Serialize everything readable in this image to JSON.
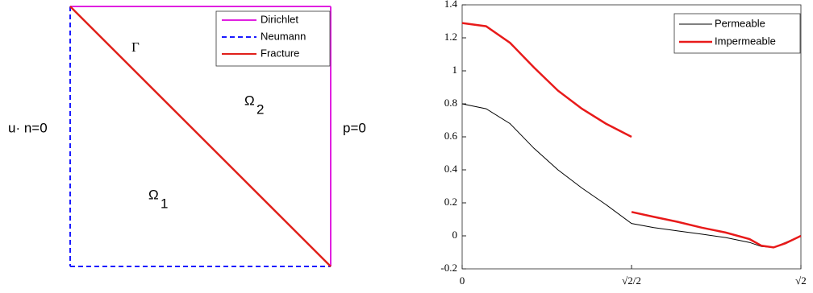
{
  "diagram": {
    "legend": [
      {
        "label": "Dirichlet",
        "color": "#e020e0",
        "dashed": false
      },
      {
        "label": "Neumann",
        "color": "#1a1aff",
        "dashed": true
      },
      {
        "label": "Fracture",
        "color": "#e0201a",
        "dashed": false
      }
    ],
    "fracture_label": "Γ",
    "domains": [
      {
        "symbol": "Ω",
        "subscript": "1"
      },
      {
        "symbol": "Ω",
        "subscript": "2"
      }
    ],
    "left_condition": "u· n=0",
    "right_condition": "p=0"
  },
  "chart_data": {
    "type": "line",
    "xlim": [
      0,
      1.41421
    ],
    "xticks": [
      0,
      {
        "value": 0.70711,
        "label": "√2/2"
      },
      {
        "value": 1.41421,
        "label": "√2"
      }
    ],
    "ylim": [
      -0.2,
      1.4
    ],
    "yticks": [
      -0.2,
      0,
      0.2,
      0.4,
      0.6,
      0.8,
      1,
      1.2,
      1.4
    ],
    "legend": "northeast",
    "series": [
      {
        "name": "Permeable",
        "color": "#000000",
        "width": 1,
        "x": [
          0,
          0.1,
          0.2,
          0.3,
          0.4,
          0.5,
          0.6,
          0.70711,
          0.8,
          0.9,
          1.0,
          1.1,
          1.2,
          1.25,
          1.3,
          1.35,
          1.41421
        ],
        "values": [
          0.8,
          0.77,
          0.68,
          0.53,
          0.4,
          0.29,
          0.19,
          0.075,
          0.05,
          0.03,
          0.01,
          -0.01,
          -0.04,
          -0.065,
          -0.07,
          -0.04,
          0
        ]
      },
      {
        "name": "Impermeable",
        "color": "#e81a1a",
        "width": 2.5,
        "x": [
          0,
          0.1,
          0.2,
          0.3,
          0.4,
          0.5,
          0.6,
          0.70711,
          0.70711,
          0.70711,
          0.8,
          0.9,
          1.0,
          1.1,
          1.2,
          1.25,
          1.3,
          1.35,
          1.41421
        ],
        "values": [
          1.29,
          1.27,
          1.17,
          1.02,
          0.88,
          0.77,
          0.68,
          0.6,
          null,
          0.145,
          0.115,
          0.085,
          0.05,
          0.02,
          -0.02,
          -0.06,
          -0.07,
          -0.045,
          0
        ]
      }
    ]
  }
}
